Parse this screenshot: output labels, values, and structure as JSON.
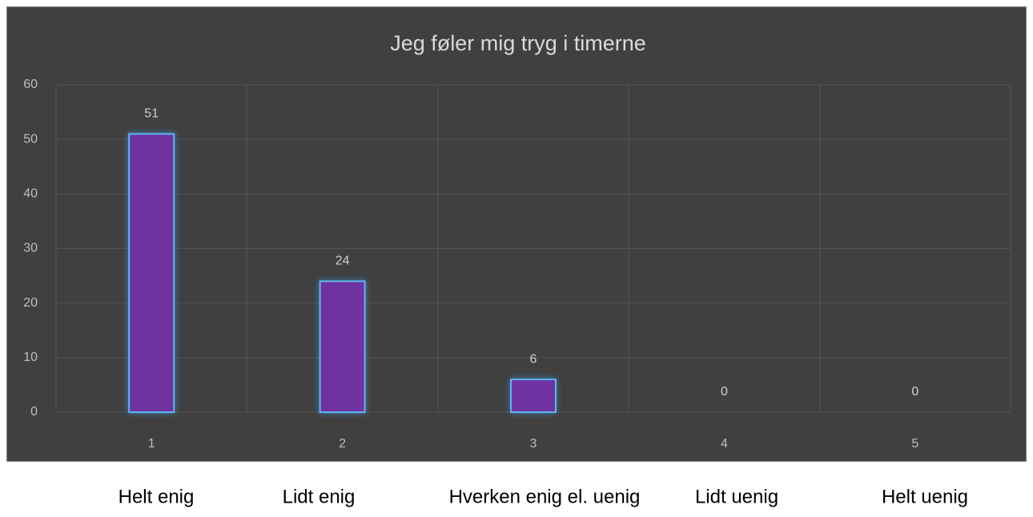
{
  "chart_data": {
    "type": "bar",
    "title": "Jeg føler mig tryg i timerne",
    "categories": [
      "1",
      "2",
      "3",
      "4",
      "5"
    ],
    "values": [
      51,
      24,
      6,
      0,
      0
    ],
    "color": "#7030a0",
    "edge_color": "#5fb4f0",
    "ylim": [
      0,
      60
    ],
    "yticks": [
      0,
      10,
      20,
      30,
      40,
      50,
      60
    ],
    "grid": true,
    "category_descriptions": [
      "Helt enig",
      "Lidt enig",
      "Hverken enig el. uenig",
      "Lidt uenig",
      "Helt uenig"
    ]
  }
}
